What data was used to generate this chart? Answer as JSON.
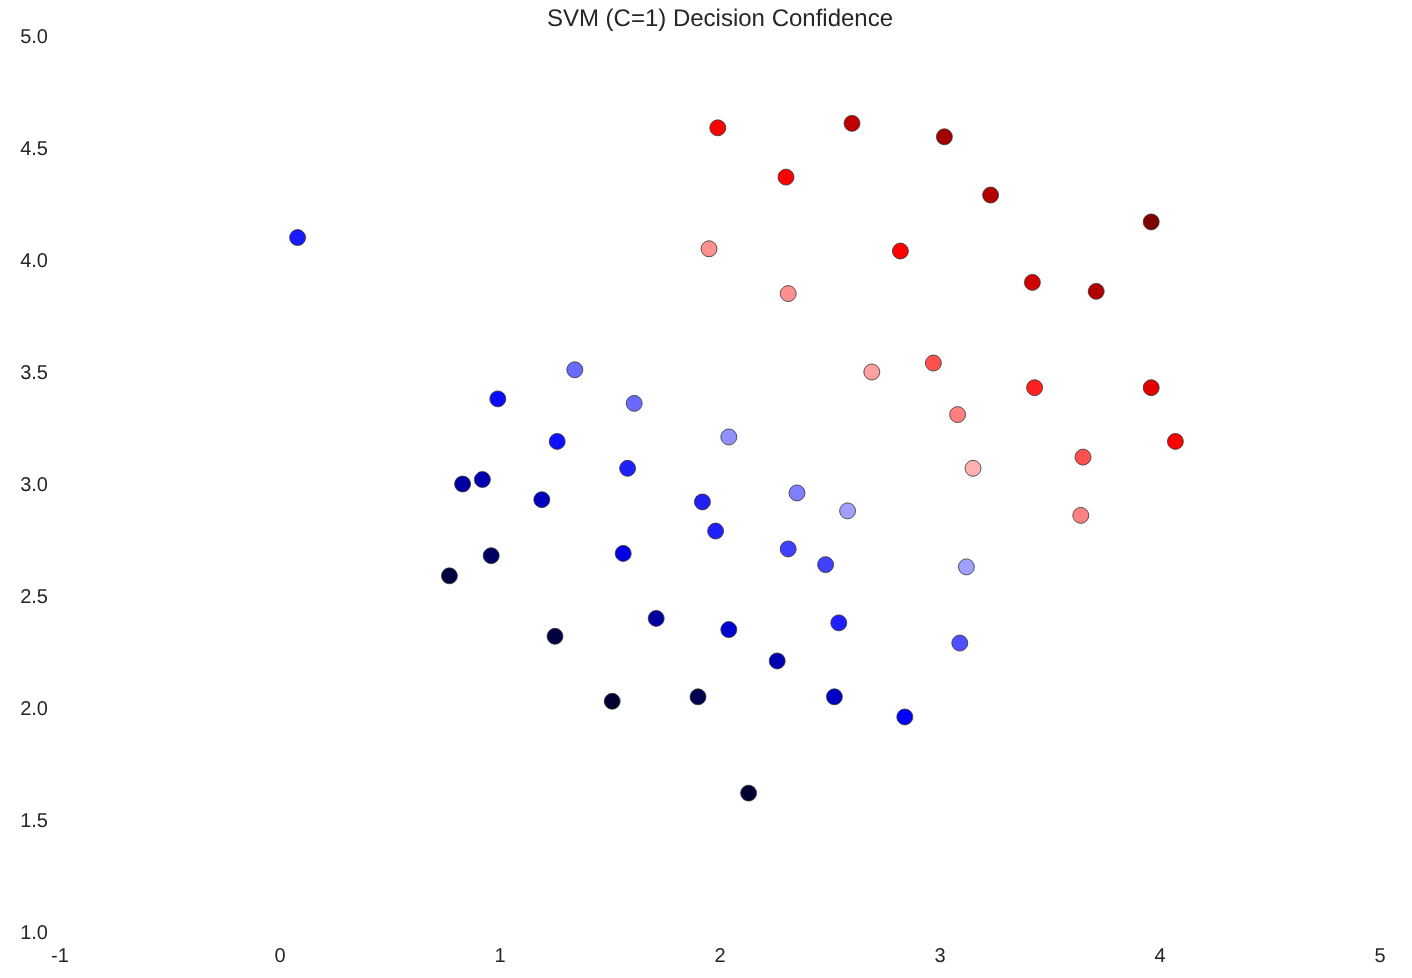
{
  "chart_data": {
    "type": "scatter",
    "title": "SVM (C=1) Decision Confidence",
    "marker": "circle",
    "xlim": [
      -1,
      5
    ],
    "xticks": [
      -1,
      0,
      1,
      2,
      3,
      4,
      5
    ],
    "ylim": [
      1,
      5
    ],
    "yticks": [
      {
        "value": 1,
        "label": "1.0"
      },
      {
        "value": 1.5,
        "label": "1.5"
      },
      {
        "value": 2,
        "label": "2.0"
      },
      {
        "value": 2.5,
        "label": "2.5"
      },
      {
        "value": 3,
        "label": "3.0"
      },
      {
        "value": 3.5,
        "label": "3.5"
      },
      {
        "value": 4,
        "label": "4.0"
      },
      {
        "value": 4.5,
        "label": "4.5"
      },
      {
        "value": 5,
        "label": "5.0"
      }
    ],
    "x": [
      1.99,
      2.6,
      3.02,
      2.3,
      3.23,
      3.96,
      1.95,
      2.82,
      3.42,
      3.71,
      2.31,
      2.97,
      2.69,
      3.43,
      3.96,
      3.08,
      4.07,
      3.65,
      3.15,
      3.64,
      0.08,
      1.34,
      0.99,
      1.61,
      2.04,
      1.26,
      1.58,
      0.92,
      0.83,
      2.35,
      1.19,
      1.92,
      2.58,
      1.98,
      0.96,
      1.56,
      2.31,
      3.12,
      2.48,
      0.77,
      1.71,
      2.04,
      2.54,
      3.09,
      1.25,
      2.26,
      1.51,
      1.9,
      2.52,
      2.84,
      2.13
    ],
    "values": [
      4.59,
      4.61,
      4.55,
      4.37,
      4.29,
      4.17,
      4.05,
      4.04,
      3.9,
      3.86,
      3.85,
      3.54,
      3.5,
      3.43,
      3.43,
      3.31,
      3.19,
      3.12,
      3.07,
      2.86,
      4.1,
      3.51,
      3.38,
      3.36,
      3.21,
      3.19,
      3.07,
      3.02,
      3.0,
      2.96,
      2.93,
      2.92,
      2.88,
      2.79,
      2.68,
      2.69,
      2.71,
      2.63,
      2.64,
      2.59,
      2.4,
      2.35,
      2.38,
      2.29,
      2.32,
      2.21,
      2.03,
      2.05,
      2.05,
      1.96,
      1.62
    ],
    "colors": [
      "#ff0000",
      "#c00000",
      "#a00000",
      "#ff0000",
      "#b00000",
      "#800000",
      "#ff9090",
      "#ff0000",
      "#d00000",
      "#b00000",
      "#ff9090",
      "#ff5050",
      "#ffa0a0",
      "#ff2020",
      "#e00000",
      "#ff8080",
      "#ff0000",
      "#ff5050",
      "#ffb0b0",
      "#ff8080",
      "#1a1aff",
      "#6a6aff",
      "#0a0aff",
      "#6a6aff",
      "#9090ff",
      "#1010ff",
      "#2020ff",
      "#0000b0",
      "#0000a0",
      "#8080ff",
      "#0000c0",
      "#2020f0",
      "#a0a0ff",
      "#2020ff",
      "#000060",
      "#0000e0",
      "#4040ff",
      "#a0a0ff",
      "#4040ff",
      "#000040",
      "#0000a0",
      "#0000d0",
      "#2020ff",
      "#5050ff",
      "#000040",
      "#0000b0",
      "#000030",
      "#000050",
      "#0000c0",
      "#0000ff",
      "#000030"
    ]
  }
}
